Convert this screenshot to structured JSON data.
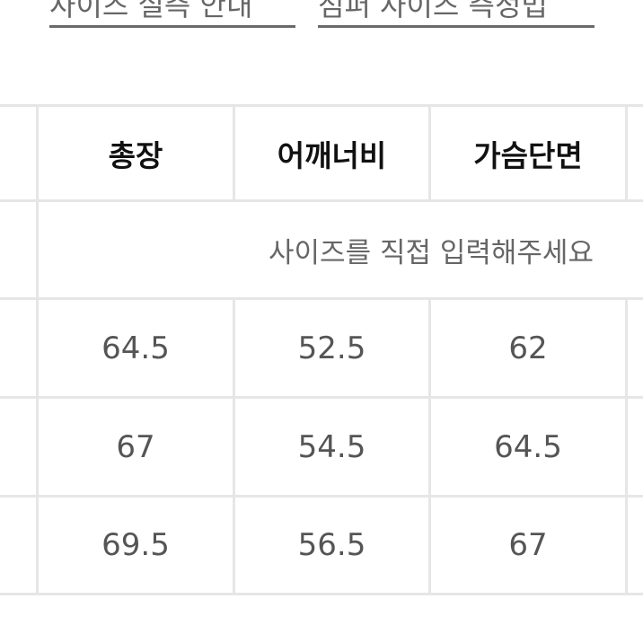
{
  "links": [
    {
      "label": "사이즈 실측 안내"
    },
    {
      "label": "점퍼 사이즈 측정법"
    }
  ],
  "table": {
    "headers": [
      "총장",
      "어깨너비",
      "가슴단면"
    ],
    "note": "사이즈를 직접 입력해주세요",
    "rows": [
      [
        "64.5",
        "52.5",
        "62"
      ],
      [
        "67",
        "54.5",
        "64.5"
      ],
      [
        "69.5",
        "56.5",
        "67"
      ]
    ]
  }
}
